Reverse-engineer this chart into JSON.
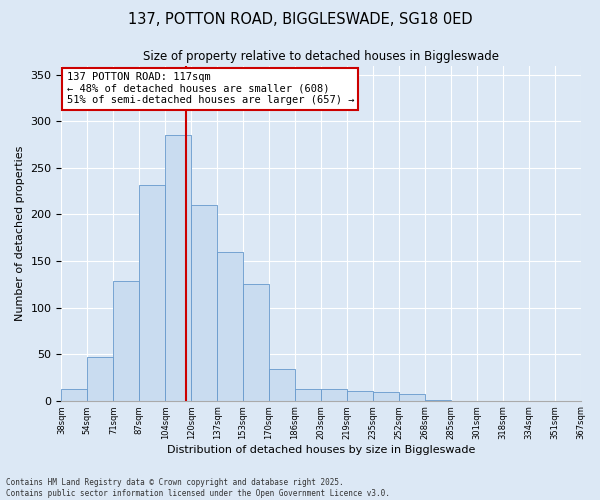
{
  "title_line1": "137, POTTON ROAD, BIGGLESWADE, SG18 0ED",
  "title_line2": "Size of property relative to detached houses in Biggleswade",
  "xlabel": "Distribution of detached houses by size in Biggleswade",
  "ylabel": "Number of detached properties",
  "bar_color": "#c9dcf0",
  "bar_edge_color": "#6699cc",
  "background_color": "#dce8f5",
  "grid_color": "#ffffff",
  "bin_labels": [
    "38sqm",
    "54sqm",
    "71sqm",
    "87sqm",
    "104sqm",
    "120sqm",
    "137sqm",
    "153sqm",
    "170sqm",
    "186sqm",
    "203sqm",
    "219sqm",
    "235sqm",
    "252sqm",
    "268sqm",
    "285sqm",
    "301sqm",
    "318sqm",
    "334sqm",
    "351sqm",
    "367sqm"
  ],
  "bar_values": [
    12,
    47,
    128,
    232,
    285,
    210,
    160,
    125,
    34,
    12,
    12,
    10,
    9,
    7,
    1,
    0,
    0,
    0,
    0,
    0
  ],
  "ylim": [
    0,
    360
  ],
  "yticks": [
    0,
    50,
    100,
    150,
    200,
    250,
    300,
    350
  ],
  "vline_color": "#cc0000",
  "annotation_text": "137 POTTON ROAD: 117sqm\n← 48% of detached houses are smaller (608)\n51% of semi-detached houses are larger (657) →",
  "annotation_box_color": "#ffffff",
  "annotation_box_edge_color": "#cc0000",
  "footer_line1": "Contains HM Land Registry data © Crown copyright and database right 2025.",
  "footer_line2": "Contains public sector information licensed under the Open Government Licence v3.0."
}
